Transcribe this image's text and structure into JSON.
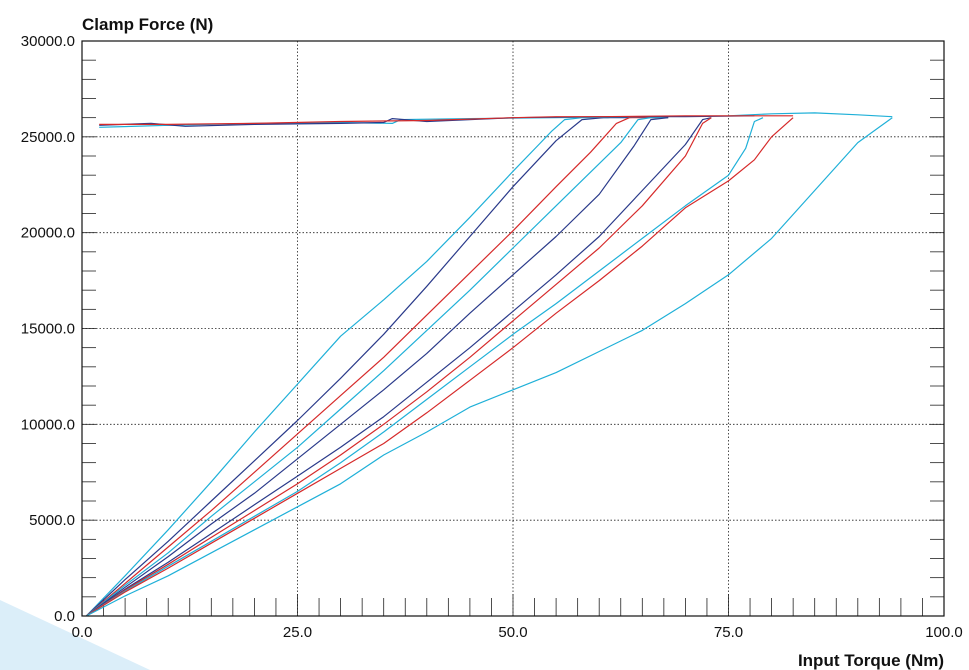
{
  "chart_data": {
    "type": "line",
    "title": "",
    "xlabel": "Input Torque (Nm)",
    "ylabel": "Clamp Force (N)",
    "xlim": [
      0,
      100
    ],
    "ylim": [
      0,
      30000
    ],
    "x_ticks": [
      0,
      25,
      50,
      75,
      100
    ],
    "x_tick_labels": [
      "0.0",
      "25.0",
      "50.0",
      "75.0",
      "100.0"
    ],
    "y_ticks": [
      0,
      5000,
      10000,
      15000,
      20000,
      25000,
      30000
    ],
    "y_tick_labels": [
      "0.0",
      "5000.0",
      "10000.0",
      "15000.0",
      "20000.0",
      "25000.0",
      "30000.0"
    ],
    "grid": "dotted at labeled ticks",
    "colors": {
      "cyan": "#1fb0d8",
      "navy": "#2a3a8a",
      "red": "#d62a2a",
      "accent": "#cfe6f6"
    },
    "series": [
      {
        "color": "cyan",
        "x": [
          0.5,
          5,
          10,
          15,
          20,
          25,
          30,
          35,
          40,
          45,
          50,
          53,
          54.5,
          56,
          58,
          61,
          62,
          63
        ],
        "y": [
          0,
          2100,
          4500,
          7000,
          9600,
          12100,
          14600,
          16500,
          18500,
          20800,
          23200,
          24600,
          25300,
          25900,
          26000,
          26000,
          26050,
          26050
        ]
      },
      {
        "color": "navy",
        "x": [
          0.5,
          5,
          10,
          15,
          20,
          25,
          30,
          35,
          40,
          45,
          50,
          55,
          58,
          60.5,
          63,
          66,
          68
        ],
        "y": [
          0,
          1900,
          3900,
          6000,
          8100,
          10200,
          12400,
          14700,
          17200,
          19800,
          22400,
          24800,
          25900,
          26000,
          26000,
          26050,
          26050
        ]
      },
      {
        "color": "red",
        "x": [
          0.5,
          5,
          10,
          15,
          20,
          25,
          30,
          35,
          40,
          45,
          50,
          55,
          59,
          62,
          63.5,
          66,
          68
        ],
        "y": [
          0,
          1700,
          3600,
          5500,
          7500,
          9500,
          11500,
          13500,
          15700,
          17900,
          20100,
          22400,
          24200,
          25700,
          26000,
          26000,
          26000
        ]
      },
      {
        "color": "cyan",
        "x": [
          0.5,
          5,
          10,
          15,
          20,
          25,
          30,
          35,
          40,
          45,
          50,
          55,
          60,
          62.5,
          64.5,
          66,
          68
        ],
        "y": [
          0,
          1600,
          3300,
          5200,
          7000,
          8800,
          10800,
          12800,
          14900,
          17000,
          19200,
          21400,
          23600,
          24700,
          25900,
          26000,
          26000
        ]
      },
      {
        "color": "navy",
        "x": [
          0.5,
          5,
          10,
          15,
          20,
          25,
          30,
          35,
          40,
          45,
          50,
          55,
          60,
          64,
          66,
          68
        ],
        "y": [
          0,
          1500,
          3100,
          4800,
          6400,
          8200,
          10000,
          11800,
          13700,
          15800,
          17800,
          19800,
          22000,
          24500,
          25900,
          26000
        ]
      },
      {
        "color": "navy",
        "x": [
          0.5,
          5,
          10,
          15,
          20,
          25,
          30,
          35,
          40,
          45,
          50,
          55,
          60,
          65,
          70,
          72,
          73
        ],
        "y": [
          0,
          1400,
          2800,
          4300,
          5800,
          7300,
          8800,
          10400,
          12200,
          14000,
          15900,
          17800,
          19800,
          22200,
          24600,
          25900,
          26000
        ]
      },
      {
        "color": "red",
        "x": [
          0.5,
          5,
          10,
          15,
          20,
          25,
          30,
          35,
          40,
          45,
          50,
          55,
          60,
          65,
          70,
          72,
          73
        ],
        "y": [
          0,
          1350,
          2700,
          4100,
          5500,
          6900,
          8400,
          10000,
          11700,
          13500,
          15400,
          17300,
          19200,
          21400,
          24000,
          25700,
          26000
        ]
      },
      {
        "color": "cyan",
        "x": [
          0.5,
          5,
          10,
          15,
          20,
          25,
          30,
          35,
          40,
          45,
          50,
          55,
          60,
          65,
          70,
          75,
          77,
          78,
          79
        ],
        "y": [
          0,
          1300,
          2600,
          3900,
          5200,
          6500,
          8000,
          9600,
          11300,
          13000,
          14700,
          16300,
          18000,
          19700,
          21400,
          23000,
          24400,
          25800,
          26000
        ]
      },
      {
        "color": "red",
        "x": [
          0.5,
          5,
          10,
          15,
          20,
          25,
          30,
          35,
          40,
          45,
          50,
          55,
          60,
          65,
          70,
          75,
          78,
          80,
          82.5
        ],
        "y": [
          0,
          1250,
          2500,
          3800,
          5100,
          6400,
          7700,
          9000,
          10600,
          12300,
          14000,
          15800,
          17500,
          19300,
          21300,
          22700,
          23800,
          25000,
          26000
        ]
      },
      {
        "color": "cyan",
        "x": [
          0.5,
          5,
          10,
          15,
          20,
          25,
          30,
          35,
          40,
          45,
          50,
          55,
          60,
          65,
          70,
          75,
          80,
          85,
          90,
          94
        ],
        "y": [
          0,
          1050,
          2100,
          3300,
          4500,
          5700,
          6900,
          8400,
          9600,
          10900,
          11800,
          12700,
          13800,
          14900,
          16300,
          17800,
          19700,
          22200,
          24700,
          26000
        ]
      },
      {
        "color": "cyan",
        "x": [
          2,
          10,
          20,
          30,
          36,
          37,
          45,
          55,
          65,
          75,
          80,
          85,
          90,
          94
        ],
        "y": [
          25500,
          25600,
          25700,
          25750,
          25700,
          25900,
          25950,
          26000,
          26050,
          26100,
          26200,
          26250,
          26150,
          26050
        ]
      },
      {
        "color": "navy",
        "x": [
          2,
          8,
          12,
          20,
          30,
          35,
          36,
          40,
          50,
          60,
          70,
          78
        ],
        "y": [
          25600,
          25700,
          25550,
          25650,
          25700,
          25750,
          25950,
          25800,
          26000,
          26050,
          26050,
          26100
        ]
      },
      {
        "color": "red",
        "x": [
          2,
          10,
          20,
          30,
          40,
          50,
          55,
          60,
          70,
          82.5
        ],
        "y": [
          25650,
          25650,
          25700,
          25800,
          25850,
          26000,
          26050,
          26050,
          26100,
          26100
        ]
      }
    ]
  }
}
